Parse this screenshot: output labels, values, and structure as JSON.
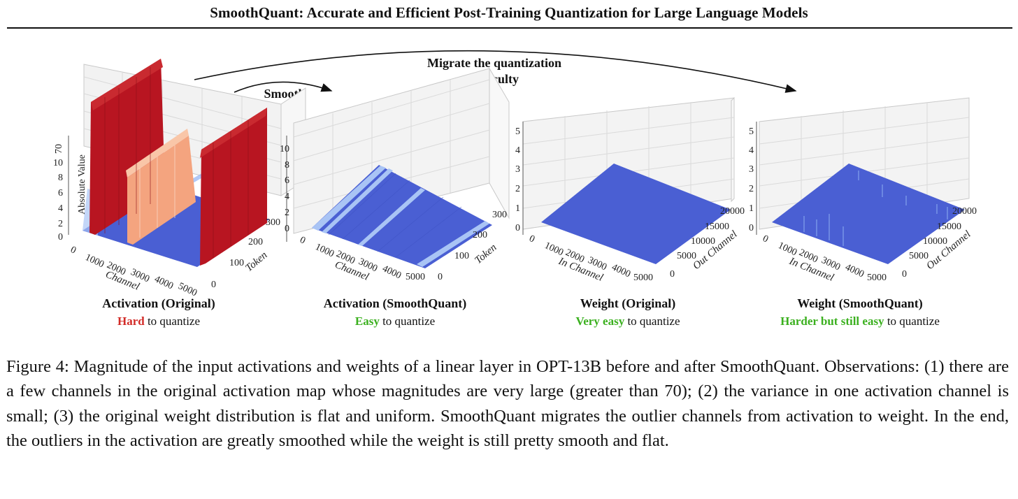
{
  "header": {
    "title": "SmoothQuant: Accurate and Efficient Post-Training Quantization for Large Language Models"
  },
  "annotations": {
    "smooth": "Smooth",
    "migrate_line1": "Migrate the quantization",
    "migrate_line2": "difficulty"
  },
  "panels": [
    {
      "title": "Activation (Original)",
      "sub_highlight": "Hard",
      "sub_rest": " to quantize",
      "highlight_color": "#d22b27",
      "z_axis_label": "Absolute Value",
      "x_axis_label": "Channel",
      "y_axis_label": "Token",
      "x_ticks": [
        "0",
        "1000",
        "2000",
        "3000",
        "4000",
        "5000"
      ],
      "y_ticks": [
        "0",
        "100",
        "200",
        "300"
      ],
      "z_ticks": [
        "0",
        "2",
        "4",
        "6",
        "8",
        "10",
        "70"
      ]
    },
    {
      "title": "Activation (SmoothQuant)",
      "sub_highlight": "Easy",
      "sub_rest": " to quantize",
      "highlight_color": "#3bb01f",
      "x_axis_label": "Channel",
      "y_axis_label": "Token",
      "x_ticks": [
        "0",
        "1000",
        "2000",
        "3000",
        "4000",
        "5000"
      ],
      "y_ticks": [
        "0",
        "100",
        "200",
        "300"
      ],
      "z_ticks": [
        "0",
        "2",
        "4",
        "6",
        "8",
        "10"
      ]
    },
    {
      "title": "Weight (Original)",
      "sub_highlight": "Very easy",
      "sub_rest": " to quantize",
      "highlight_color": "#3bb01f",
      "x_axis_label": "In Channel",
      "y_axis_label": "Out Channel",
      "x_ticks": [
        "0",
        "1000",
        "2000",
        "3000",
        "4000",
        "5000"
      ],
      "y_ticks": [
        "0",
        "5000",
        "10000",
        "15000",
        "20000"
      ],
      "z_ticks": [
        "0",
        "1",
        "2",
        "3",
        "4",
        "5"
      ]
    },
    {
      "title": "Weight (SmoothQuant)",
      "sub_highlight": "Harder but still easy",
      "sub_rest": " to quantize",
      "highlight_color": "#3bb01f",
      "x_axis_label": "In Channel",
      "y_axis_label": "Out Channel",
      "x_ticks": [
        "0",
        "1000",
        "2000",
        "3000",
        "4000",
        "5000"
      ],
      "y_ticks": [
        "0",
        "5000",
        "10000",
        "15000",
        "20000"
      ],
      "z_ticks": [
        "0",
        "1",
        "2",
        "3",
        "4",
        "5"
      ]
    }
  ],
  "caption": {
    "text": "Figure 4: Magnitude of the input activations and weights of a linear layer in OPT-13B before and after SmoothQuant. Observations: (1) there are a few channels in the original activation map whose magnitudes are very large (greater than 70); (2) the variance in one activation channel is small; (3) the original weight distribution is flat and uniform. SmoothQuant migrates the outlier channels from activation to weight. In the end, the outliers in the activation are greatly smoothed while the weight is still pretty smooth and flat."
  },
  "colors": {
    "surface_blue": "#4a5fd3",
    "surface_light_blue": "#a9c4f5",
    "outlier_red": "#b81521",
    "outlier_salmon": "#f4a47f",
    "pane": "#f4f4f4",
    "grid": "#d6d6d6"
  }
}
